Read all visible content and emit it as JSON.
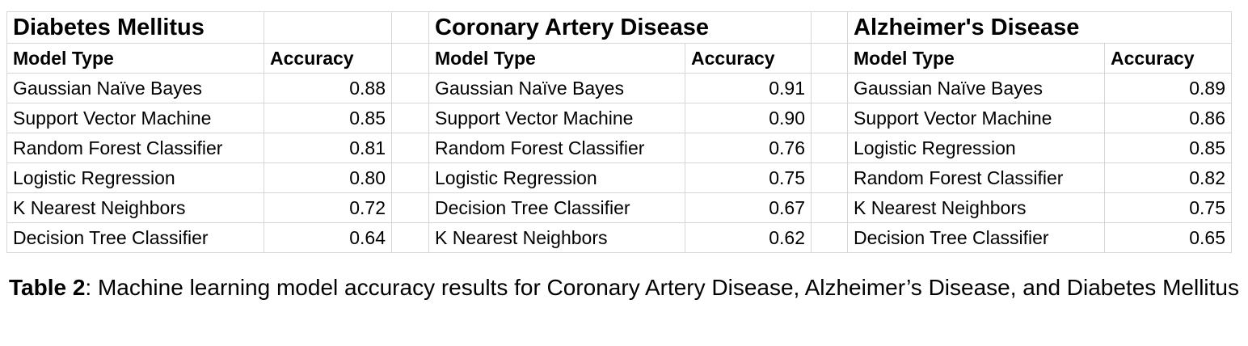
{
  "table": {
    "column_header_model": "Model Type",
    "column_header_accuracy": "Accuracy",
    "groups": [
      {
        "title": "Diabetes Mellitus",
        "rows": [
          {
            "model": "Gaussian Naïve Bayes",
            "accuracy": "0.88"
          },
          {
            "model": "Support Vector Machine",
            "accuracy": "0.85"
          },
          {
            "model": "Random Forest Classifier",
            "accuracy": "0.81"
          },
          {
            "model": "Logistic Regression",
            "accuracy": "0.80"
          },
          {
            "model": "K Nearest Neighbors",
            "accuracy": "0.72"
          },
          {
            "model": "Decision Tree Classifier",
            "accuracy": "0.64"
          }
        ]
      },
      {
        "title": "Coronary Artery Disease",
        "rows": [
          {
            "model": "Gaussian Naïve Bayes",
            "accuracy": "0.91"
          },
          {
            "model": "Support Vector Machine",
            "accuracy": "0.90"
          },
          {
            "model": "Random Forest Classifier",
            "accuracy": "0.76"
          },
          {
            "model": "Logistic Regression",
            "accuracy": "0.75"
          },
          {
            "model": "Decision Tree Classifier",
            "accuracy": "0.67"
          },
          {
            "model": "K Nearest Neighbors",
            "accuracy": "0.62"
          }
        ]
      },
      {
        "title": "Alzheimer's Disease",
        "rows": [
          {
            "model": "Gaussian Naïve Bayes",
            "accuracy": "0.89"
          },
          {
            "model": "Support Vector Machine",
            "accuracy": "0.86"
          },
          {
            "model": "Logistic Regression",
            "accuracy": "0.85"
          },
          {
            "model": "Random Forest Classifier",
            "accuracy": "0.82"
          },
          {
            "model": "K Nearest Neighbors",
            "accuracy": "0.75"
          },
          {
            "model": "Decision Tree Classifier",
            "accuracy": "0.65"
          }
        ]
      }
    ]
  },
  "caption": {
    "label": "Table 2",
    "text": ": Machine learning model accuracy results for Coronary Artery Disease, Alzheimer’s Disease, and Diabetes Mellitus"
  }
}
